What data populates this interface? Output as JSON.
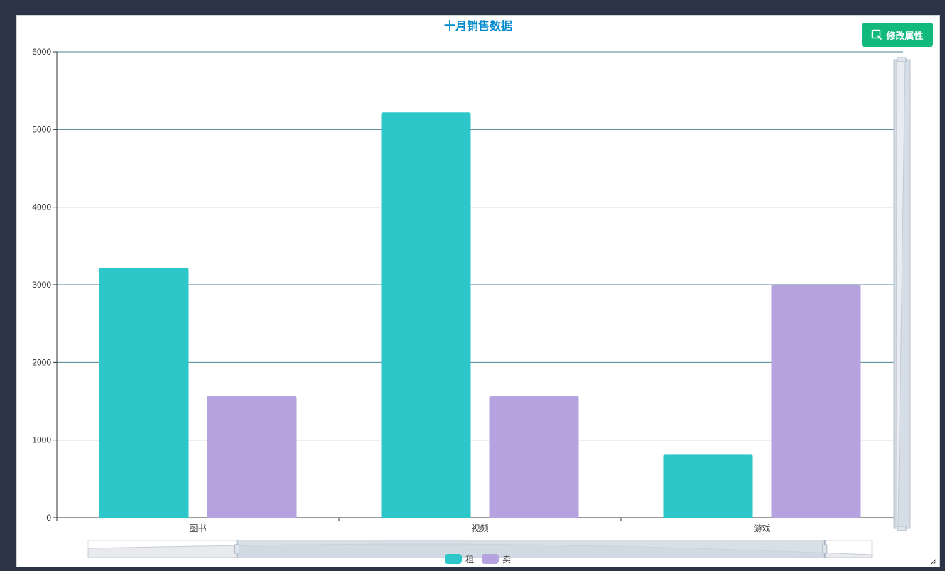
{
  "toolbar": {
    "edit_label": "修改属性",
    "edit_icon": "edit-icon"
  },
  "chart_data": {
    "type": "bar",
    "title": "十月销售数据",
    "categories": [
      "图书",
      "视频",
      "游戏"
    ],
    "series": [
      {
        "name": "租",
        "values": [
          3220,
          5220,
          820
        ],
        "color": "#2ec7c9"
      },
      {
        "name": "卖",
        "values": [
          1570,
          1570,
          3000
        ],
        "color": "#b6a2de"
      }
    ],
    "yticks": [
      0,
      1000,
      2000,
      3000,
      4000,
      5000,
      6000
    ],
    "ylim": [
      0,
      6000
    ],
    "grid": true,
    "legend": "bottom-center",
    "xlabel": "",
    "ylabel": "",
    "title_color": "#008acd",
    "zoom": {
      "x_start": 0.19,
      "x_end": 0.94,
      "y_start": 0.0,
      "y_end": 1.0
    }
  }
}
